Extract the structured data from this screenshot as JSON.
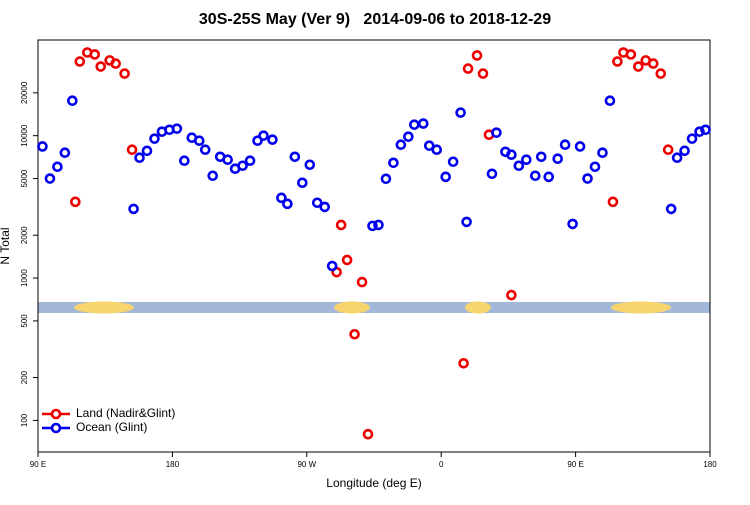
{
  "chart_data": {
    "type": "scatter",
    "title": "30S-25S May (Ver 9)   2014-09-06 to 2018-12-29",
    "x_label": "Longitude (deg E)",
    "y_label": "N Total",
    "log_y": true,
    "legend": "bottom-left",
    "xlim": [
      90,
      540
    ],
    "ylim": [
      60,
      47000
    ],
    "xticks": [
      {
        "value": 90,
        "label": "90 E"
      },
      {
        "value": 180,
        "label": "180"
      },
      {
        "value": 270,
        "label": "90 W"
      },
      {
        "value": 360,
        "label": "0"
      },
      {
        "value": 450,
        "label": "90 E"
      },
      {
        "value": 540,
        "label": "180"
      }
    ],
    "yticks": [
      100,
      200,
      500,
      1000,
      2000,
      5000,
      10000,
      20000
    ],
    "series": [
      {
        "name": "Land (Nadir&Glint)",
        "color": "#ee0000",
        "x": [
          115,
          118,
          123,
          128,
          132,
          138,
          142,
          148,
          153,
          290,
          293,
          297,
          302,
          307,
          311,
          375,
          378,
          384,
          388,
          392,
          407,
          475,
          478,
          482,
          487,
          492,
          497,
          502,
          507,
          512
        ],
        "values": [
          3430,
          33200,
          38400,
          37200,
          30600,
          33800,
          32100,
          27300,
          7970,
          1100,
          2360,
          1340,
          403,
          937,
          80,
          252,
          29600,
          36600,
          27300,
          10160,
          759,
          3430,
          33200,
          38400,
          37200,
          30600,
          33800,
          32100,
          27300,
          7970
        ]
      },
      {
        "name": "Ocean (Glint)",
        "color": "#0000ee",
        "x": [
          93,
          98,
          103,
          108,
          113,
          154,
          158,
          163,
          168,
          173,
          178,
          183,
          188,
          193,
          198,
          202,
          207,
          212,
          217,
          222,
          227,
          232,
          237,
          241,
          247,
          253,
          257,
          262,
          267,
          272,
          277,
          282,
          287,
          314,
          318,
          323,
          328,
          333,
          338,
          342,
          348,
          352,
          357,
          363,
          368,
          373,
          377,
          394,
          397,
          403,
          407,
          412,
          417,
          423,
          427,
          432,
          438,
          443,
          448,
          453,
          458,
          463,
          468,
          473,
          514,
          518,
          523,
          528,
          533,
          537
        ],
        "values": [
          8400,
          5000,
          6050,
          7590,
          17600,
          3060,
          7000,
          7830,
          9530,
          10670,
          11000,
          11200,
          6670,
          9680,
          9220,
          7970,
          5230,
          7110,
          6780,
          5860,
          6150,
          6670,
          9220,
          10000,
          9380,
          3660,
          3320,
          7110,
          4670,
          6250,
          3380,
          3160,
          1215,
          2325,
          2360,
          4980,
          6450,
          8640,
          9840,
          11950,
          12160,
          8510,
          7970,
          5140,
          6560,
          14520,
          2480,
          5400,
          10500,
          7710,
          7350,
          6150,
          6780,
          5230,
          7110,
          5140,
          6890,
          8640,
          2400,
          8400,
          5000,
          6050,
          7590,
          17600,
          3060,
          7000,
          7830,
          9530,
          10670,
          11000
        ]
      }
    ]
  }
}
